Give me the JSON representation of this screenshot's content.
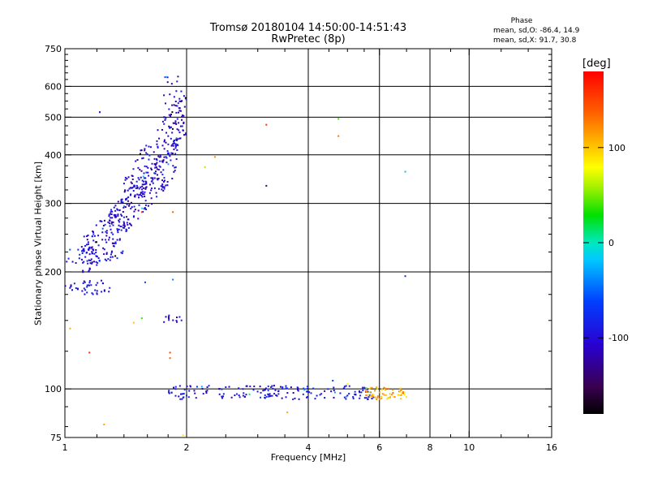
{
  "chart_data": {
    "type": "scatter",
    "title": "Tromsø 20180104 14:50:00-14:51:43",
    "subtitle": "RwPretec (8p)",
    "xlabel": "Frequency [MHz]",
    "ylabel": "Stationary phase Virtual Height [km]",
    "x_scale": "log",
    "y_scale": "log",
    "xlim": [
      1,
      16
    ],
    "ylim": [
      75,
      750
    ],
    "x_ticks": [
      1,
      2,
      4,
      6,
      8,
      10,
      16
    ],
    "x_tick_labels": [
      "1",
      "2",
      "4",
      "6",
      "8",
      "10",
      "16"
    ],
    "y_ticks": [
      75,
      100,
      200,
      300,
      400,
      500,
      600,
      750
    ],
    "y_tick_labels": [
      "75",
      "100",
      "200",
      "300",
      "400",
      "500",
      "600",
      "750"
    ],
    "x_minor_ticks": [
      1.2,
      1.4,
      1.6,
      1.8,
      2.5,
      3,
      3.5,
      4.5,
      5,
      5.5,
      7,
      9,
      12,
      14
    ],
    "y_minor_ticks": [
      80,
      90,
      125,
      150,
      175,
      225,
      250,
      275,
      325,
      350,
      375,
      425,
      450,
      475,
      525,
      550,
      575,
      625,
      650,
      675,
      700,
      725
    ],
    "grid": true,
    "grid_x": [
      2,
      4,
      6,
      8,
      10
    ],
    "grid_y": [
      100,
      200,
      300,
      400,
      500,
      600
    ],
    "colorbar": {
      "unit": "[deg]",
      "range": [
        -180,
        180
      ],
      "ticks": [
        100,
        0,
        -100
      ],
      "tick_labels": [
        "100",
        "0",
        "-100"
      ]
    },
    "phase_stats": {
      "title": "Phase",
      "line_o": "mean, sd,O: -86.4, 14.9",
      "line_x": "mean, sd,X:  91.7, 30.8"
    },
    "point_clusters": [
      {
        "region": "F-trace lower",
        "f_range": [
          1.0,
          1.3
        ],
        "h_range": [
          175,
          190
        ],
        "phase": -100,
        "count": 40
      },
      {
        "region": "F-trace lower 2",
        "f_range": [
          1.0,
          1.4
        ],
        "h_range": [
          210,
          230
        ],
        "phase": -95,
        "count": 40
      },
      {
        "region": "F-trace main",
        "f_range": [
          1.1,
          1.9
        ],
        "h_range": [
          220,
          400
        ],
        "phase": -100,
        "count": 320
      },
      {
        "region": "F-trace upper",
        "f_range": [
          1.4,
          2.0
        ],
        "h_range": [
          300,
          520
        ],
        "phase": -110,
        "count": 160
      },
      {
        "region": "F-trace top",
        "f_range": [
          1.75,
          1.95
        ],
        "h_range": [
          480,
          640
        ],
        "phase": -100,
        "count": 20
      },
      {
        "region": "E-layer",
        "f_range": [
          1.8,
          5.8
        ],
        "h_range": [
          94,
          102
        ],
        "phase": -95,
        "count": 180
      },
      {
        "region": "E-layer high freq",
        "f_range": [
          5.5,
          7.0
        ],
        "h_range": [
          94,
          101
        ],
        "phase": 110,
        "count": 60
      },
      {
        "region": "mid echo",
        "f_range": [
          1.75,
          1.95
        ],
        "h_range": [
          148,
          155
        ],
        "phase": -100,
        "count": 12
      }
    ],
    "scatter_points": [
      {
        "x": 1.22,
        "y": 515,
        "phase": -110
      },
      {
        "x": 3.15,
        "y": 478,
        "phase": 160
      },
      {
        "x": 3.15,
        "y": 333,
        "phase": -140
      },
      {
        "x": 4.75,
        "y": 495,
        "phase": 40
      },
      {
        "x": 4.75,
        "y": 447,
        "phase": 130
      },
      {
        "x": 6.95,
        "y": 362,
        "phase": -20
      },
      {
        "x": 6.95,
        "y": 195,
        "phase": -80
      },
      {
        "x": 2.35,
        "y": 395,
        "phase": 120
      },
      {
        "x": 2.22,
        "y": 372,
        "phase": 60
      },
      {
        "x": 1.03,
        "y": 143,
        "phase": 110
      },
      {
        "x": 1.15,
        "y": 124,
        "phase": 160
      },
      {
        "x": 1.82,
        "y": 124,
        "phase": 150
      },
      {
        "x": 1.82,
        "y": 120,
        "phase": 140
      },
      {
        "x": 1.48,
        "y": 148,
        "phase": 100
      },
      {
        "x": 1.55,
        "y": 152,
        "phase": 40
      },
      {
        "x": 1.58,
        "y": 188,
        "phase": -60
      },
      {
        "x": 1.85,
        "y": 191,
        "phase": -40
      },
      {
        "x": 1.25,
        "y": 81,
        "phase": 110
      },
      {
        "x": 1.96,
        "y": 76,
        "phase": 90
      },
      {
        "x": 3.55,
        "y": 87,
        "phase": 110
      },
      {
        "x": 4.6,
        "y": 105,
        "phase": -60
      },
      {
        "x": 5.0,
        "y": 103,
        "phase": 80
      },
      {
        "x": 1.85,
        "y": 285,
        "phase": 140
      },
      {
        "x": 1.55,
        "y": 285,
        "phase": 150
      }
    ]
  }
}
